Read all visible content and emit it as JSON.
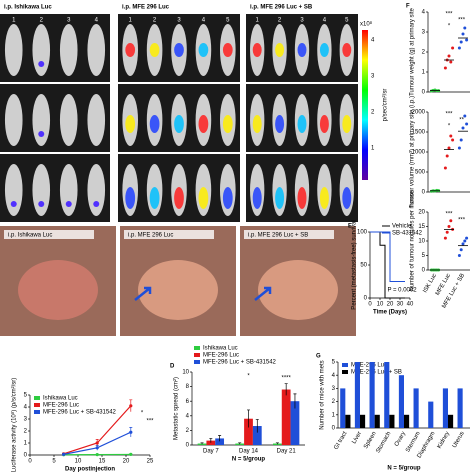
{
  "imaging": {
    "groups": [
      {
        "title": "i.p. Ishikawa Luc",
        "mice": [
          "1",
          "2",
          "3",
          "4"
        ]
      },
      {
        "title": "i.p. MFE 296 Luc",
        "mice": [
          "1",
          "2",
          "3",
          "4",
          "5"
        ]
      },
      {
        "title": "i.p. MFE 296 Luc + SB",
        "mice": [
          "1",
          "2",
          "3",
          "4",
          "5"
        ]
      }
    ],
    "colorbar": {
      "ticks": [
        "4",
        "3",
        "2",
        "1"
      ],
      "unit": "x10⁸",
      "label": "p/sec/cm²/sr"
    }
  },
  "necropsy": {
    "titles": [
      "i.p. Ishikawa Luc",
      "i.p. MFE 296 Luc",
      "i.p. MFE 296 Luc + SB"
    ]
  },
  "chart_data": [
    {
      "type": "line",
      "x": [
        7,
        14,
        21
      ],
      "xlim": [
        0,
        25
      ],
      "xticks": [
        0,
        5,
        10,
        15,
        20,
        25
      ],
      "ylim": [
        0,
        5
      ],
      "yticks": [
        0,
        1,
        2,
        3,
        4,
        5
      ],
      "xlabel": "Day postinjection",
      "ylabel": "Luciferase activity (10⁸) (p/s/cm²/sr)",
      "legend": "top-left",
      "annotations": [
        "*",
        "***"
      ],
      "series": [
        {
          "name": "Ishikawa Luc",
          "color": "#2ecc40",
          "values": [
            0.02,
            0.03,
            0.05
          ],
          "errors": [
            0.02,
            0.02,
            0.03
          ]
        },
        {
          "name": "MFE-296 Luc",
          "color": "#e41a1c",
          "values": [
            0.1,
            1.0,
            4.1
          ],
          "errors": [
            0.05,
            0.3,
            0.5
          ]
        },
        {
          "name": "MFE-296 Luc + SB-431542",
          "color": "#1f4fd8",
          "values": [
            0.05,
            0.6,
            1.9
          ],
          "errors": [
            0.03,
            0.2,
            0.4
          ]
        }
      ]
    },
    {
      "type": "bar",
      "panel": "D",
      "categories": [
        "Day 7",
        "Day 14",
        "Day 21"
      ],
      "ylim": [
        0,
        10
      ],
      "yticks": [
        0,
        2,
        4,
        6,
        8,
        10
      ],
      "ylabel": "Metastatic spread (cm²)",
      "xlabel": "N = 5/group",
      "legend": "top",
      "annotations": [
        "*",
        "****"
      ],
      "series": [
        {
          "name": "Ishikawa Luc",
          "color": "#2ecc40",
          "values": [
            0.2,
            0.2,
            0.2
          ],
          "errors": [
            0.1,
            0.1,
            0.1
          ]
        },
        {
          "name": "MFE-296 Luc",
          "color": "#e41a1c",
          "values": [
            0.6,
            3.6,
            7.6
          ],
          "errors": [
            0.3,
            1.2,
            0.8
          ]
        },
        {
          "name": "MFE-296 Luc + SB-431542",
          "color": "#1f4fd8",
          "values": [
            0.9,
            2.6,
            6.0
          ],
          "errors": [
            0.4,
            0.9,
            1.0
          ]
        }
      ]
    },
    {
      "type": "step",
      "panel": "E",
      "x": [
        0,
        10,
        10,
        15,
        15,
        20,
        20,
        35
      ],
      "xlim": [
        0,
        40
      ],
      "xticks": [
        0,
        10,
        20,
        30,
        40
      ],
      "ylim": [
        0,
        100
      ],
      "yticks": [
        0,
        50,
        100
      ],
      "xlabel": "Time (Days)",
      "ylabel": "Percent (metastasis-free) survival",
      "annotations": [
        "P = 0.0002"
      ],
      "series": [
        {
          "name": "Vehicle",
          "color": "#000000",
          "values": [
            100,
            100,
            80,
            80,
            0,
            0,
            0,
            0
          ]
        },
        {
          "name": "SB-431542",
          "color": "#1f4fd8",
          "values": [
            100,
            100,
            100,
            100,
            100,
            100,
            25,
            25
          ]
        }
      ]
    },
    {
      "type": "dot",
      "panel": "F",
      "colors": [
        "#2ecc40",
        "#e41a1c",
        "#1f4fd8"
      ],
      "ylim": [
        0,
        4
      ],
      "yticks": [
        0,
        1,
        2,
        3,
        4
      ],
      "ylabel": "Tumour weight (g) at primary site",
      "annotations": [
        "***",
        "***",
        "*"
      ],
      "values": [
        [
          0.05,
          0.08,
          0.1,
          0.06,
          0.07
        ],
        [
          1.2,
          1.6,
          1.8,
          1.5,
          2.2
        ],
        [
          2.2,
          2.5,
          2.9,
          3.2,
          2.6
        ]
      ],
      "means": [
        0.07,
        1.6,
        2.7
      ]
    },
    {
      "type": "dot",
      "colors": [
        "#2ecc40",
        "#e41a1c",
        "#1f4fd8"
      ],
      "ylim": [
        0,
        2000
      ],
      "yticks": [
        0,
        500,
        1000,
        1500,
        2000
      ],
      "ylabel": "Tumour volume (mm³) at primary site (i.p.)",
      "annotations": [
        "***",
        "**",
        "*"
      ],
      "values": [
        [
          20,
          30,
          25,
          40,
          35
        ],
        [
          600,
          900,
          1100,
          1400,
          1300
        ],
        [
          1100,
          1300,
          1600,
          1900,
          1700
        ]
      ],
      "means": [
        30,
        1060,
        1520
      ]
    },
    {
      "type": "dot",
      "colors": [
        "#2ecc40",
        "#e41a1c",
        "#1f4fd8"
      ],
      "categories": [
        "ISK Luc",
        "MFE Luc",
        "MFE Luc + SB"
      ],
      "ylim": [
        0,
        20
      ],
      "yticks": [
        0,
        5,
        10,
        15,
        20
      ],
      "ylabel": "Number of tumour nodules per mouse",
      "annotations": [
        "***",
        "***"
      ],
      "values": [
        [
          0,
          0,
          0,
          0,
          0
        ],
        [
          11,
          13,
          15,
          17,
          14
        ],
        [
          5,
          7,
          9,
          10,
          11
        ]
      ],
      "means": [
        0,
        14,
        8.4
      ]
    },
    {
      "type": "bar",
      "panel": "G",
      "categories": [
        "GI tract",
        "Liver",
        "Spleen",
        "Stomach",
        "Ovary",
        "Sternum",
        "Diaphragm",
        "Kidney",
        "Uterus"
      ],
      "ylim": [
        0,
        5
      ],
      "yticks": [
        0,
        1,
        2,
        3,
        4,
        5
      ],
      "ylabel": "Number of mice with mets",
      "xlabel": "N = 5/group",
      "legend": "top-left",
      "series": [
        {
          "name": "MFE-296 Luc",
          "color": "#1f4fd8",
          "values": [
            3,
            5,
            5,
            5,
            4,
            3,
            2,
            3,
            3
          ]
        },
        {
          "name": "MFE-296 Luc + SB",
          "color": "#000000",
          "values": [
            1,
            1,
            1,
            1,
            1,
            0,
            0,
            1,
            0
          ]
        }
      ]
    }
  ]
}
